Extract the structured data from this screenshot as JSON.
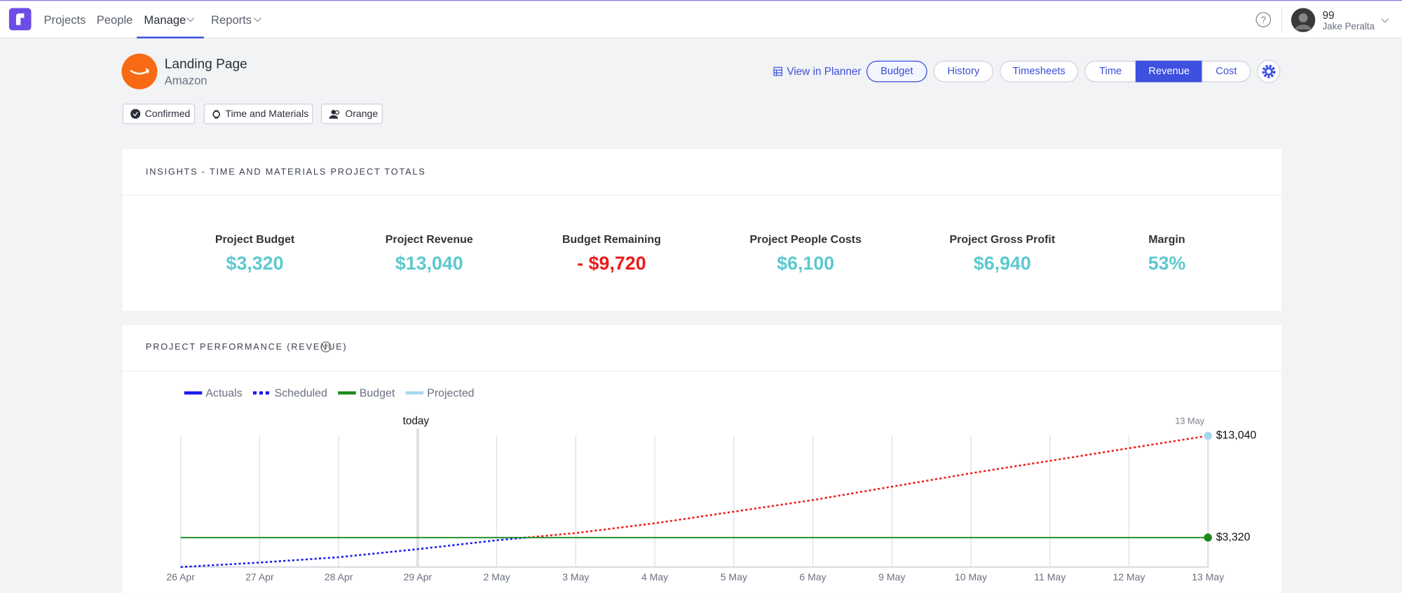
{
  "nav": {
    "items": [
      "Projects",
      "People",
      "Manage",
      "Reports"
    ],
    "user_count": "99",
    "user_name": "Jake Peralta"
  },
  "project": {
    "title": "Landing Page",
    "client": "Amazon",
    "tags": [
      "Confirmed",
      "Time and Materials",
      "Orange"
    ]
  },
  "actions": {
    "planner": "View in Planner",
    "tabs": [
      "Budget",
      "History",
      "Timesheets"
    ],
    "views": [
      "Time",
      "Revenue",
      "Cost"
    ]
  },
  "insights": {
    "title": "INSIGHTS - TIME AND MATERIALS PROJECT TOTALS",
    "metrics": [
      {
        "label": "Project Budget",
        "value": "$3,320",
        "color": "#5cc9cf"
      },
      {
        "label": "Project Revenue",
        "value": "$13,040",
        "color": "#5cc9cf"
      },
      {
        "label": "Budget Remaining",
        "value": "- $9,720",
        "color": "#ea1a1a"
      },
      {
        "label": "Project People Costs",
        "value": "$6,100",
        "color": "#5cc9cf"
      },
      {
        "label": "Project Gross Profit",
        "value": "$6,940",
        "color": "#5cc9cf"
      },
      {
        "label": "Margin",
        "value": "53%",
        "color": "#5cc9cf"
      }
    ]
  },
  "performance": {
    "title": "PROJECT PERFORMANCE (REVENUE)"
  },
  "chart_data": {
    "type": "line",
    "categories": [
      "26 Apr",
      "27 Apr",
      "28 Apr",
      "29 Apr",
      "2 May",
      "3 May",
      "4 May",
      "5 May",
      "6 May",
      "9 May",
      "10 May",
      "11 May",
      "12 May",
      "13 May"
    ],
    "ylim": [
      500,
      13040
    ],
    "grid": true,
    "series": [
      {
        "name": "Actuals",
        "color": "#1a1aef",
        "style": "solid",
        "values": [
          null,
          null,
          null,
          null,
          null,
          null,
          null,
          null,
          null,
          null,
          null,
          null,
          null,
          null
        ]
      },
      {
        "name": "Scheduled",
        "color": "#1a1aef",
        "style": "dotted",
        "over_budget_color": "#f01c1c",
        "values": [
          500,
          930,
          1440,
          2210,
          3060,
          3750,
          4680,
          5790,
          6900,
          8180,
          9460,
          10650,
          11850,
          13040
        ]
      },
      {
        "name": "Budget",
        "color": "#1b8a1b",
        "style": "solid",
        "end_marker": true,
        "values": [
          3320,
          3320,
          3320,
          3320,
          3320,
          3320,
          3320,
          3320,
          3320,
          3320,
          3320,
          3320,
          3320,
          3320
        ],
        "value_labels": [
          null,
          null,
          null,
          null,
          null,
          null,
          null,
          null,
          null,
          null,
          null,
          null,
          null,
          "$3,320"
        ]
      },
      {
        "name": "Projected",
        "color": "#a9d8ea",
        "style": "solid",
        "end_marker": true,
        "values": [
          null,
          null,
          null,
          null,
          null,
          null,
          null,
          null,
          null,
          null,
          null,
          null,
          null,
          13040
        ],
        "value_labels": [
          null,
          null,
          null,
          null,
          null,
          null,
          null,
          null,
          null,
          null,
          null,
          null,
          null,
          "$13,040"
        ]
      }
    ],
    "annotations": [
      {
        "text": "today",
        "at": "29 Apr"
      },
      {
        "text": "13 May",
        "at": "13 May"
      }
    ]
  }
}
